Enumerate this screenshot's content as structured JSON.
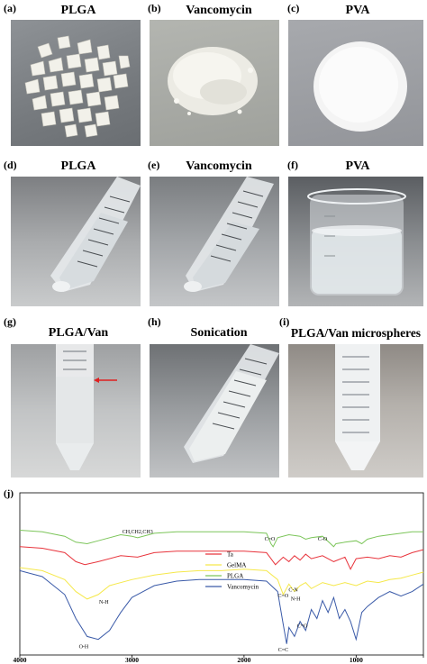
{
  "panels": [
    {
      "letter": "(a)",
      "title": "PLGA"
    },
    {
      "letter": "(b)",
      "title": "Vancomycin"
    },
    {
      "letter": "(c)",
      "title": "PVA"
    },
    {
      "letter": "(d)",
      "title": "PLGA"
    },
    {
      "letter": "(e)",
      "title": "Vancomycin"
    },
    {
      "letter": "(f)",
      "title": "PVA"
    },
    {
      "letter": "(g)",
      "title": "PLGA/Van"
    },
    {
      "letter": "(h)",
      "title": "Sonication"
    },
    {
      "letter": "(i)",
      "title": "PLGA/Van microspheres"
    }
  ],
  "colors": {
    "ta": "#e8343c",
    "gelma": "#f5e84a",
    "plga": "#7cc55a",
    "vancomycin": "#3a5aa8",
    "arrow": "#e02020"
  },
  "chart_data": {
    "type": "line",
    "panel_label": "(j)",
    "x_ticks": [
      4000,
      3000,
      2000,
      1000
    ],
    "xlim": [
      4000,
      400
    ],
    "legend_placement": "center",
    "series": [
      {
        "name": "Ta",
        "color": "#e8343c",
        "x": [
          4000,
          3800,
          3600,
          3500,
          3420,
          3300,
          3100,
          2950,
          2800,
          2600,
          2400,
          2200,
          2000,
          1800,
          1760,
          1720,
          1650,
          1600,
          1550,
          1500,
          1450,
          1400,
          1300,
          1200,
          1100,
          1050,
          1000,
          900,
          800,
          700,
          600,
          500,
          400
        ],
        "y": [
          0.7,
          0.69,
          0.66,
          0.6,
          0.58,
          0.6,
          0.64,
          0.63,
          0.66,
          0.67,
          0.67,
          0.67,
          0.67,
          0.66,
          0.62,
          0.58,
          0.63,
          0.6,
          0.64,
          0.61,
          0.65,
          0.62,
          0.64,
          0.6,
          0.63,
          0.55,
          0.62,
          0.63,
          0.62,
          0.64,
          0.63,
          0.66,
          0.68
        ]
      },
      {
        "name": "GelMA",
        "color": "#f5e84a",
        "x": [
          4000,
          3800,
          3600,
          3500,
          3400,
          3300,
          3200,
          3000,
          2800,
          2600,
          2400,
          2200,
          2000,
          1800,
          1700,
          1650,
          1600,
          1550,
          1500,
          1450,
          1400,
          1300,
          1200,
          1100,
          1000,
          900,
          800,
          700,
          600,
          500,
          400
        ],
        "y": [
          0.56,
          0.54,
          0.48,
          0.4,
          0.35,
          0.38,
          0.44,
          0.48,
          0.51,
          0.53,
          0.54,
          0.54,
          0.55,
          0.54,
          0.48,
          0.38,
          0.45,
          0.4,
          0.44,
          0.46,
          0.42,
          0.46,
          0.44,
          0.46,
          0.44,
          0.47,
          0.46,
          0.48,
          0.49,
          0.51,
          0.53
        ]
      },
      {
        "name": "PLGA",
        "color": "#7cc55a",
        "x": [
          4000,
          3800,
          3600,
          3500,
          3400,
          3300,
          3100,
          3000,
          2950,
          2800,
          2600,
          2400,
          2200,
          2000,
          1800,
          1760,
          1740,
          1700,
          1600,
          1500,
          1450,
          1400,
          1300,
          1200,
          1180,
          1100,
          1000,
          950,
          900,
          800,
          700,
          600,
          500,
          400
        ],
        "y": [
          0.81,
          0.8,
          0.77,
          0.73,
          0.72,
          0.74,
          0.78,
          0.77,
          0.76,
          0.79,
          0.8,
          0.8,
          0.8,
          0.8,
          0.79,
          0.72,
          0.7,
          0.76,
          0.78,
          0.77,
          0.75,
          0.76,
          0.77,
          0.7,
          0.72,
          0.73,
          0.74,
          0.72,
          0.75,
          0.77,
          0.78,
          0.79,
          0.8,
          0.8
        ]
      },
      {
        "name": "Vancomycin",
        "color": "#3a5aa8",
        "x": [
          4000,
          3800,
          3600,
          3500,
          3400,
          3300,
          3200,
          3100,
          3000,
          2900,
          2800,
          2600,
          2400,
          2200,
          2000,
          1800,
          1700,
          1650,
          1620,
          1600,
          1550,
          1500,
          1450,
          1400,
          1350,
          1300,
          1250,
          1200,
          1150,
          1100,
          1050,
          1000,
          950,
          900,
          800,
          700,
          600,
          500,
          400
        ],
        "y": [
          0.54,
          0.5,
          0.38,
          0.22,
          0.1,
          0.08,
          0.14,
          0.26,
          0.36,
          0.4,
          0.44,
          0.47,
          0.48,
          0.48,
          0.48,
          0.47,
          0.4,
          0.18,
          0.05,
          0.16,
          0.1,
          0.2,
          0.14,
          0.28,
          0.22,
          0.34,
          0.26,
          0.36,
          0.22,
          0.28,
          0.2,
          0.08,
          0.26,
          0.3,
          0.36,
          0.4,
          0.37,
          0.4,
          0.45
        ]
      }
    ],
    "annotations": [
      {
        "text": "CH,CH2,CH3",
        "x": 2950,
        "y": 0.79
      },
      {
        "text": "C=O",
        "x": 1770,
        "y": 0.74
      },
      {
        "text": "C-O",
        "x": 1300,
        "y": 0.74
      },
      {
        "text": "N-H",
        "x": 3250,
        "y": 0.32
      },
      {
        "text": "C=O",
        "x": 1650,
        "y": 0.36
      },
      {
        "text": "C-N",
        "x": 1560,
        "y": 0.4
      },
      {
        "text": "N-H",
        "x": 1540,
        "y": 0.34
      },
      {
        "text": "C=O",
        "x": 1480,
        "y": 0.16
      },
      {
        "text": "O-H",
        "x": 3430,
        "y": 0.02
      },
      {
        "text": "C=C",
        "x": 1650,
        "y": 0.0
      }
    ]
  }
}
